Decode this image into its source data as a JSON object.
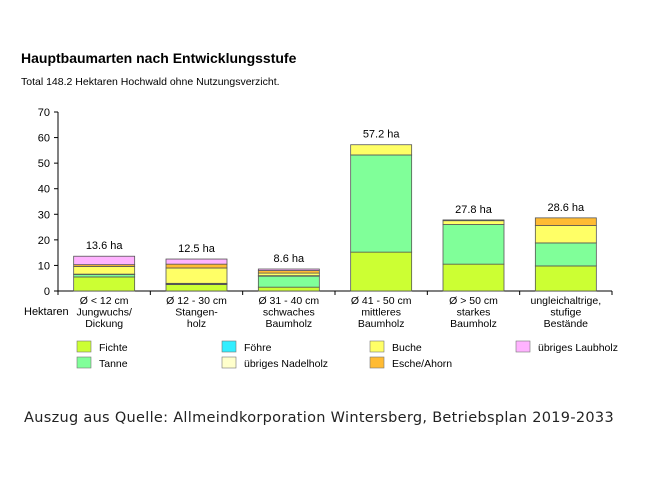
{
  "chart_data": {
    "type": "bar",
    "stacked": true,
    "title": "Hauptbaumarten nach Entwicklungsstufe",
    "subtitle": "Total 148.2 Hektaren Hochwald ohne Nutzungsverzicht.",
    "ylabel": "Hektaren",
    "xlabel": "",
    "ylim": [
      0,
      70
    ],
    "yticks": [
      0,
      10,
      20,
      30,
      40,
      50,
      60,
      70
    ],
    "grid": false,
    "legend_position": "bottom",
    "categories": [
      [
        "Ø < 12 cm",
        "Jungwuchs/",
        "Dickung"
      ],
      [
        "Ø 12 - 30 cm",
        "Stangen-",
        "holz"
      ],
      [
        "Ø 31 - 40 cm",
        "schwaches",
        "Baumholz"
      ],
      [
        "Ø 41 - 50 cm",
        "mittleres",
        "Baumholz"
      ],
      [
        "Ø > 50 cm",
        "starkes",
        "Baumholz"
      ],
      [
        "ungleichaltrige,",
        "stufige",
        "Bestände"
      ]
    ],
    "totals_labels": [
      "13.6 ha",
      "12.5 ha",
      "8.6 ha",
      "57.2 ha",
      "27.8 ha",
      "28.6 ha"
    ],
    "series": [
      {
        "name": "Fichte",
        "color": "#ccff33",
        "values": [
          5.5,
          2.5,
          1.5,
          15.2,
          10.5,
          9.8
        ]
      },
      {
        "name": "Tanne",
        "color": "#80ff99",
        "values": [
          1.0,
          0.3,
          4.3,
          38.0,
          15.5,
          9.0
        ]
      },
      {
        "name": "Föhre",
        "color": "#33eeff",
        "values": [
          0.0,
          0.0,
          0.0,
          0.0,
          0.0,
          0.0
        ]
      },
      {
        "name": "übriges Nadelholz",
        "color": "#ffffcc",
        "values": [
          0.1,
          0.2,
          0.2,
          0.0,
          0.0,
          0.0
        ]
      },
      {
        "name": "Buche",
        "color": "#ffff66",
        "values": [
          3.0,
          6.0,
          1.0,
          4.0,
          1.5,
          6.8
        ]
      },
      {
        "name": "Esche/Ahorn",
        "color": "#ffbb33",
        "values": [
          0.7,
          1.5,
          1.0,
          0.0,
          0.3,
          3.0
        ]
      },
      {
        "name": "übriges Laubholz",
        "color": "#ffb3ff",
        "values": [
          3.3,
          2.0,
          0.6,
          0.0,
          0.0,
          0.0
        ]
      }
    ],
    "legend_order": [
      "Fichte",
      "Tanne",
      "Föhre",
      "übriges Nadelholz",
      "Buche",
      "Esche/Ahorn",
      "übriges Laubholz"
    ]
  },
  "source_text": "Auszug aus Quelle: Allmeindkorporation Wintersberg, Betriebsplan 2019-2033"
}
